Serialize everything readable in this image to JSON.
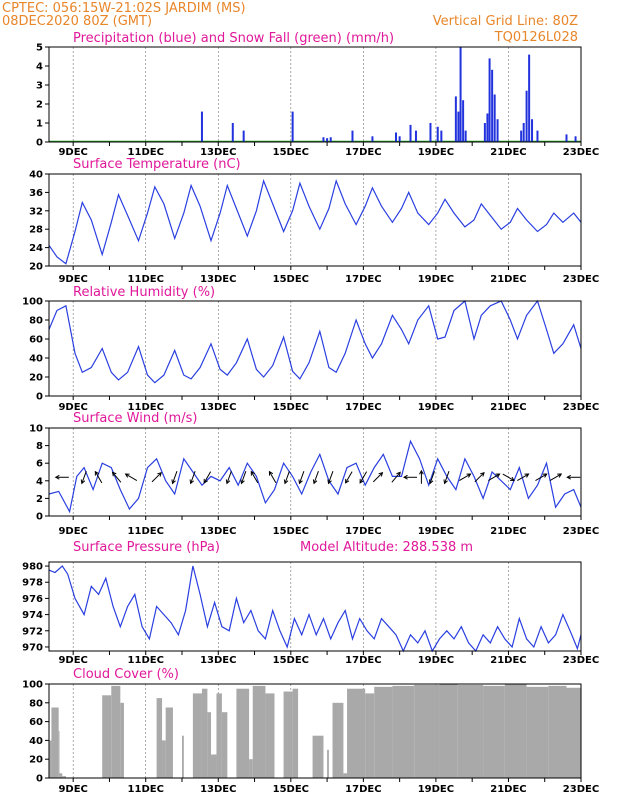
{
  "header": {
    "line1_left": "CPTEC:   056:15W-21:02S   JARDIM (MS)",
    "line2_left": "08DEC2020 80Z (GMT)",
    "line2_right": "Vertical Grid Line: 80Z",
    "line3_right": "TQ0126L028"
  },
  "date_ticks": [
    "9DEC",
    "11DEC",
    "13DEC",
    "15DEC",
    "17DEC",
    "19DEC",
    "21DEC",
    "23DEC"
  ],
  "model_altitude": "Model Altitude: 288.538 m",
  "colors": {
    "line": "#2a3fe0",
    "precip": "#2233dd",
    "snow": "#1f9a1f",
    "cloud": "#a9a9a9",
    "title": "#e0189a",
    "header": "#e8862a"
  },
  "chart_data": [
    {
      "id": "precip",
      "type": "bar",
      "title": "Precipitation (blue) and Snow Fall (green) (mm/h)",
      "ylim": [
        0,
        5
      ],
      "yticks": [
        0,
        1,
        2,
        3,
        4,
        5
      ],
      "x_units": "days since 08DEC2020 00Z",
      "xlim": [
        0.3333,
        15
      ],
      "bars": [
        [
          4.55,
          1.6
        ],
        [
          5.4,
          1.0
        ],
        [
          5.7,
          0.6
        ],
        [
          7.05,
          1.6
        ],
        [
          7.9,
          0.25
        ],
        [
          8.0,
          0.2
        ],
        [
          8.1,
          0.25
        ],
        [
          8.7,
          0.6
        ],
        [
          9.25,
          0.3
        ],
        [
          9.9,
          0.5
        ],
        [
          10.0,
          0.3
        ],
        [
          10.3,
          0.9
        ],
        [
          10.45,
          0.6
        ],
        [
          10.85,
          1.0
        ],
        [
          11.05,
          0.8
        ],
        [
          11.15,
          0.6
        ],
        [
          11.55,
          2.4
        ],
        [
          11.62,
          1.6
        ],
        [
          11.68,
          5.0
        ],
        [
          11.75,
          2.2
        ],
        [
          11.82,
          0.6
        ],
        [
          12.35,
          1.0
        ],
        [
          12.42,
          1.5
        ],
        [
          12.48,
          4.4
        ],
        [
          12.55,
          3.8
        ],
        [
          12.62,
          2.5
        ],
        [
          12.7,
          1.2
        ],
        [
          13.35,
          0.6
        ],
        [
          13.42,
          1.0
        ],
        [
          13.5,
          2.7
        ],
        [
          13.57,
          4.6
        ],
        [
          13.65,
          1.2
        ],
        [
          13.8,
          0.6
        ],
        [
          14.6,
          0.4
        ],
        [
          14.85,
          0.3
        ]
      ],
      "snow": "0 throughout"
    },
    {
      "id": "temp",
      "type": "line",
      "title": "Surface Temperature (nC)",
      "ylim": [
        20,
        40
      ],
      "yticks": [
        20,
        24,
        28,
        32,
        36,
        40
      ],
      "x_units": "days since 08DEC2020 00Z",
      "xlim": [
        0.3333,
        15
      ],
      "x": [
        0.3333,
        0.55,
        0.8,
        1.05,
        1.25,
        1.5,
        1.8,
        2.05,
        2.25,
        2.5,
        2.8,
        3.05,
        3.25,
        3.5,
        3.8,
        4.05,
        4.25,
        4.5,
        4.8,
        5.05,
        5.25,
        5.5,
        5.8,
        6.05,
        6.25,
        6.5,
        6.8,
        7.05,
        7.25,
        7.5,
        7.8,
        8.05,
        8.25,
        8.5,
        8.8,
        9.05,
        9.25,
        9.5,
        9.8,
        10.05,
        10.25,
        10.5,
        10.8,
        11.05,
        11.25,
        11.5,
        11.8,
        12.05,
        12.25,
        12.5,
        12.8,
        13.05,
        13.25,
        13.5,
        13.8,
        14.05,
        14.25,
        14.5,
        14.8,
        15.0
      ],
      "y": [
        24.5,
        22.0,
        20.5,
        27.5,
        33.8,
        30.0,
        22.5,
        29.5,
        35.5,
        31.0,
        25.5,
        31.5,
        37.2,
        33.5,
        26.0,
        31.5,
        37.5,
        33.0,
        25.5,
        31.5,
        37.5,
        32.5,
        26.5,
        32.0,
        38.5,
        33.5,
        27.5,
        32.0,
        38.0,
        33.0,
        28.0,
        32.5,
        38.5,
        33.5,
        29.0,
        33.0,
        37.0,
        33.0,
        29.5,
        32.5,
        36.0,
        31.5,
        29.0,
        31.5,
        34.5,
        31.5,
        28.5,
        30.0,
        33.5,
        31.0,
        28.0,
        29.5,
        32.5,
        30.0,
        27.5,
        29.0,
        31.5,
        29.5,
        31.5,
        29.5
      ]
    },
    {
      "id": "rh",
      "type": "line",
      "title": "Relative Humidity (%)",
      "ylim": [
        0,
        100
      ],
      "yticks": [
        0,
        20,
        40,
        60,
        80,
        100
      ],
      "x_units": "days since 08DEC2020 00Z",
      "xlim": [
        0.3333,
        15
      ],
      "x": [
        0.3333,
        0.55,
        0.8,
        1.05,
        1.25,
        1.5,
        1.8,
        2.05,
        2.25,
        2.5,
        2.8,
        3.05,
        3.25,
        3.5,
        3.8,
        4.05,
        4.25,
        4.5,
        4.8,
        5.05,
        5.25,
        5.5,
        5.8,
        6.05,
        6.25,
        6.5,
        6.8,
        7.05,
        7.25,
        7.5,
        7.8,
        8.05,
        8.25,
        8.5,
        8.8,
        9.05,
        9.25,
        9.5,
        9.8,
        10.05,
        10.25,
        10.5,
        10.8,
        11.05,
        11.25,
        11.5,
        11.8,
        12.05,
        12.25,
        12.5,
        12.8,
        13.05,
        13.25,
        13.5,
        13.8,
        14.05,
        14.25,
        14.5,
        14.8,
        15.0
      ],
      "y": [
        70,
        90,
        95,
        45,
        25,
        30,
        50,
        25,
        17,
        25,
        52,
        22,
        14,
        22,
        48,
        22,
        18,
        30,
        55,
        28,
        22,
        35,
        60,
        28,
        20,
        32,
        62,
        26,
        18,
        35,
        68,
        30,
        25,
        45,
        80,
        55,
        40,
        55,
        85,
        70,
        55,
        80,
        95,
        60,
        62,
        90,
        100,
        60,
        85,
        95,
        100,
        80,
        60,
        85,
        100,
        70,
        45,
        55,
        75,
        50
      ]
    },
    {
      "id": "wind",
      "type": "line",
      "title": "Surface Wind (m/s)",
      "ylim": [
        0,
        10
      ],
      "yticks": [
        0,
        2,
        4,
        6,
        8,
        10
      ],
      "x_units": "days since 08DEC2020 00Z",
      "xlim": [
        0.3333,
        15
      ],
      "x": [
        0.3333,
        0.6,
        0.9,
        1.1,
        1.3,
        1.55,
        1.8,
        2.05,
        2.3,
        2.55,
        2.8,
        3.05,
        3.3,
        3.55,
        3.8,
        4.05,
        4.3,
        4.55,
        4.8,
        5.05,
        5.3,
        5.55,
        5.8,
        6.05,
        6.3,
        6.55,
        6.8,
        7.05,
        7.3,
        7.55,
        7.8,
        8.05,
        8.3,
        8.55,
        8.8,
        9.05,
        9.3,
        9.55,
        9.8,
        10.05,
        10.3,
        10.55,
        10.8,
        11.05,
        11.3,
        11.55,
        11.8,
        12.05,
        12.3,
        12.55,
        12.8,
        13.05,
        13.3,
        13.55,
        13.8,
        14.05,
        14.3,
        14.55,
        14.8,
        15.0
      ],
      "y": [
        2.5,
        2.8,
        0.5,
        4.5,
        5.5,
        3.0,
        6.0,
        5.5,
        3.0,
        0.8,
        2.0,
        5.5,
        6.5,
        4.0,
        2.5,
        6.5,
        5.0,
        3.5,
        4.5,
        4.0,
        5.5,
        3.5,
        6.0,
        4.5,
        1.5,
        3.0,
        6.0,
        4.5,
        2.5,
        5.0,
        7.0,
        4.0,
        2.5,
        5.5,
        6.0,
        3.5,
        5.5,
        7.0,
        4.5,
        4.5,
        8.5,
        6.5,
        3.5,
        6.5,
        4.5,
        3.0,
        6.5,
        4.5,
        2.0,
        5.0,
        4.0,
        3.0,
        5.5,
        2.0,
        3.5,
        6.0,
        1.0,
        2.5,
        3.0,
        1.0
      ],
      "arrows": [
        {
          "x": 0.7,
          "dir_deg": 270
        },
        {
          "x": 1.3,
          "dir_deg": 200
        },
        {
          "x": 1.7,
          "dir_deg": 330
        },
        {
          "x": 2.2,
          "dir_deg": 320
        },
        {
          "x": 2.6,
          "dir_deg": 300
        },
        {
          "x": 3.3,
          "dir_deg": 45
        },
        {
          "x": 3.8,
          "dir_deg": 200
        },
        {
          "x": 4.3,
          "dir_deg": 200
        },
        {
          "x": 4.7,
          "dir_deg": 210
        },
        {
          "x": 5.3,
          "dir_deg": 200
        },
        {
          "x": 5.7,
          "dir_deg": 200
        },
        {
          "x": 6.0,
          "dir_deg": 330
        },
        {
          "x": 6.5,
          "dir_deg": 330
        },
        {
          "x": 6.9,
          "dir_deg": 200
        },
        {
          "x": 7.3,
          "dir_deg": 200
        },
        {
          "x": 7.7,
          "dir_deg": 200
        },
        {
          "x": 8.1,
          "dir_deg": 200
        },
        {
          "x": 8.6,
          "dir_deg": 210
        },
        {
          "x": 9.0,
          "dir_deg": 210
        },
        {
          "x": 9.4,
          "dir_deg": 45
        },
        {
          "x": 9.9,
          "dir_deg": 40
        },
        {
          "x": 10.3,
          "dir_deg": 270
        },
        {
          "x": 10.6,
          "dir_deg": 0
        },
        {
          "x": 10.9,
          "dir_deg": 200
        },
        {
          "x": 11.3,
          "dir_deg": 200
        },
        {
          "x": 11.8,
          "dir_deg": 60
        },
        {
          "x": 12.2,
          "dir_deg": 45
        },
        {
          "x": 12.6,
          "dir_deg": 60
        },
        {
          "x": 13.0,
          "dir_deg": 120
        },
        {
          "x": 13.4,
          "dir_deg": 60
        },
        {
          "x": 13.9,
          "dir_deg": 60
        },
        {
          "x": 14.3,
          "dir_deg": 60
        },
        {
          "x": 14.8,
          "dir_deg": 270
        }
      ]
    },
    {
      "id": "pres",
      "type": "line",
      "title": "Surface Pressure (hPa)",
      "ylim": [
        969.5,
        980.5
      ],
      "yticks": [
        970,
        972,
        974,
        976,
        978,
        980
      ],
      "x_units": "days since 08DEC2020 00Z",
      "xlim": [
        0.3333,
        15
      ],
      "x": [
        0.3333,
        0.5,
        0.7,
        0.85,
        1.05,
        1.3,
        1.5,
        1.7,
        1.9,
        2.1,
        2.3,
        2.5,
        2.7,
        2.9,
        3.1,
        3.3,
        3.5,
        3.7,
        3.9,
        4.1,
        4.3,
        4.5,
        4.7,
        4.9,
        5.1,
        5.3,
        5.5,
        5.7,
        5.9,
        6.1,
        6.3,
        6.5,
        6.7,
        6.9,
        7.1,
        7.3,
        7.5,
        7.7,
        7.9,
        8.1,
        8.3,
        8.5,
        8.7,
        8.9,
        9.1,
        9.3,
        9.5,
        9.7,
        9.9,
        10.1,
        10.3,
        10.5,
        10.7,
        10.9,
        11.1,
        11.3,
        11.5,
        11.7,
        11.9,
        12.1,
        12.3,
        12.5,
        12.7,
        12.9,
        13.1,
        13.3,
        13.5,
        13.7,
        13.9,
        14.1,
        14.3,
        14.5,
        14.7,
        14.9,
        15.0
      ],
      "y": [
        979.5,
        979.2,
        980.0,
        979.0,
        976.0,
        974.0,
        977.5,
        976.5,
        978.5,
        975.0,
        972.5,
        975.0,
        976.5,
        972.5,
        971.0,
        975.0,
        974.0,
        973.0,
        971.5,
        974.5,
        980.0,
        976.5,
        972.5,
        975.5,
        972.5,
        972.0,
        976.0,
        973.0,
        974.5,
        972.0,
        971.0,
        974.5,
        972.0,
        970.0,
        973.5,
        971.5,
        974.0,
        971.5,
        973.5,
        971.0,
        973.0,
        974.5,
        971.0,
        973.5,
        972.0,
        971.0,
        973.5,
        972.5,
        971.5,
        969.5,
        971.5,
        970.5,
        972.0,
        969.5,
        971.0,
        972.0,
        971.0,
        972.5,
        970.5,
        969.5,
        971.5,
        970.5,
        972.5,
        971.0,
        970.0,
        973.5,
        971.0,
        970.0,
        972.5,
        970.5,
        971.5,
        974.0,
        972.0,
        969.8,
        971.5
      ]
    },
    {
      "id": "cloud",
      "type": "area",
      "title": "Cloud Cover (%)",
      "ylim": [
        0,
        100
      ],
      "yticks": [
        0,
        20,
        40,
        60,
        80,
        100
      ],
      "x_units": "days since 08DEC2020 00Z",
      "xlim": [
        0.3333,
        15
      ],
      "segments": [
        [
          0.35,
          0.4,
          40
        ],
        [
          0.4,
          0.6,
          75
        ],
        [
          0.6,
          0.62,
          50
        ],
        [
          0.62,
          0.7,
          5
        ],
        [
          0.7,
          0.8,
          2
        ],
        [
          1.8,
          2.05,
          88
        ],
        [
          2.05,
          2.3,
          98
        ],
        [
          2.3,
          2.4,
          80
        ],
        [
          2.4,
          2.55,
          0
        ],
        [
          3.3,
          3.45,
          85
        ],
        [
          3.45,
          3.55,
          40
        ],
        [
          3.55,
          3.75,
          75
        ],
        [
          3.75,
          3.8,
          0
        ],
        [
          4.0,
          4.05,
          45
        ],
        [
          4.3,
          4.55,
          90
        ],
        [
          4.55,
          4.7,
          95
        ],
        [
          4.7,
          4.8,
          70
        ],
        [
          4.8,
          4.95,
          25
        ],
        [
          4.95,
          5.1,
          90
        ],
        [
          5.1,
          5.25,
          70
        ],
        [
          5.25,
          5.4,
          0
        ],
        [
          5.5,
          5.85,
          95
        ],
        [
          5.85,
          5.95,
          20
        ],
        [
          5.95,
          6.3,
          98
        ],
        [
          6.3,
          6.55,
          90
        ],
        [
          6.55,
          6.65,
          0
        ],
        [
          6.8,
          7.05,
          92
        ],
        [
          7.05,
          7.2,
          95
        ],
        [
          7.2,
          7.3,
          0
        ],
        [
          7.6,
          7.9,
          45
        ],
        [
          8.0,
          8.05,
          30
        ],
        [
          8.15,
          8.45,
          80
        ],
        [
          8.45,
          8.55,
          5
        ],
        [
          8.55,
          9.05,
          95
        ],
        [
          9.05,
          9.3,
          90
        ],
        [
          9.3,
          9.8,
          97
        ],
        [
          9.8,
          10.4,
          98
        ],
        [
          10.4,
          11.1,
          99
        ],
        [
          11.1,
          11.6,
          100
        ],
        [
          11.6,
          12.3,
          99
        ],
        [
          12.3,
          12.9,
          98
        ],
        [
          12.9,
          13.5,
          100
        ],
        [
          13.5,
          14.1,
          97
        ],
        [
          14.1,
          14.6,
          98
        ],
        [
          14.6,
          15.0,
          96
        ]
      ]
    }
  ]
}
